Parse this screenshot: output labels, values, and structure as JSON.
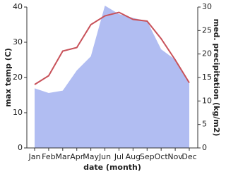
{
  "chart_data": {
    "type": "line",
    "x_label": "date (month)",
    "y_label": "max temp (C)",
    "y2_label": "med. precipitation (kg/m2)",
    "categories": [
      "Jan",
      "Feb",
      "Mar",
      "Apr",
      "May",
      "Jun",
      "Jul",
      "Aug",
      "Sep",
      "Oct",
      "Nov",
      "Dec"
    ],
    "series": [
      {
        "name": "precipitation",
        "color": "#b1bdf2",
        "axis": "y2",
        "kind": "area",
        "values": [
          12.7,
          11.7,
          12.2,
          16.5,
          19.5,
          30.3,
          28.5,
          27.7,
          27,
          21,
          18.8,
          13.8
        ]
      },
      {
        "name": "max temp",
        "color": "#c8525a",
        "kind": "line",
        "values": [
          18,
          20.5,
          27.5,
          28.5,
          35,
          37.5,
          38.5,
          36.5,
          36,
          31,
          25,
          18.5
        ]
      }
    ],
    "ylim": [
      0,
      40
    ],
    "yticks": [
      0,
      10,
      20,
      30,
      40
    ],
    "y2lim": [
      0,
      30
    ],
    "y2ticks": [
      0,
      5,
      10,
      15,
      20,
      25,
      30
    ]
  }
}
